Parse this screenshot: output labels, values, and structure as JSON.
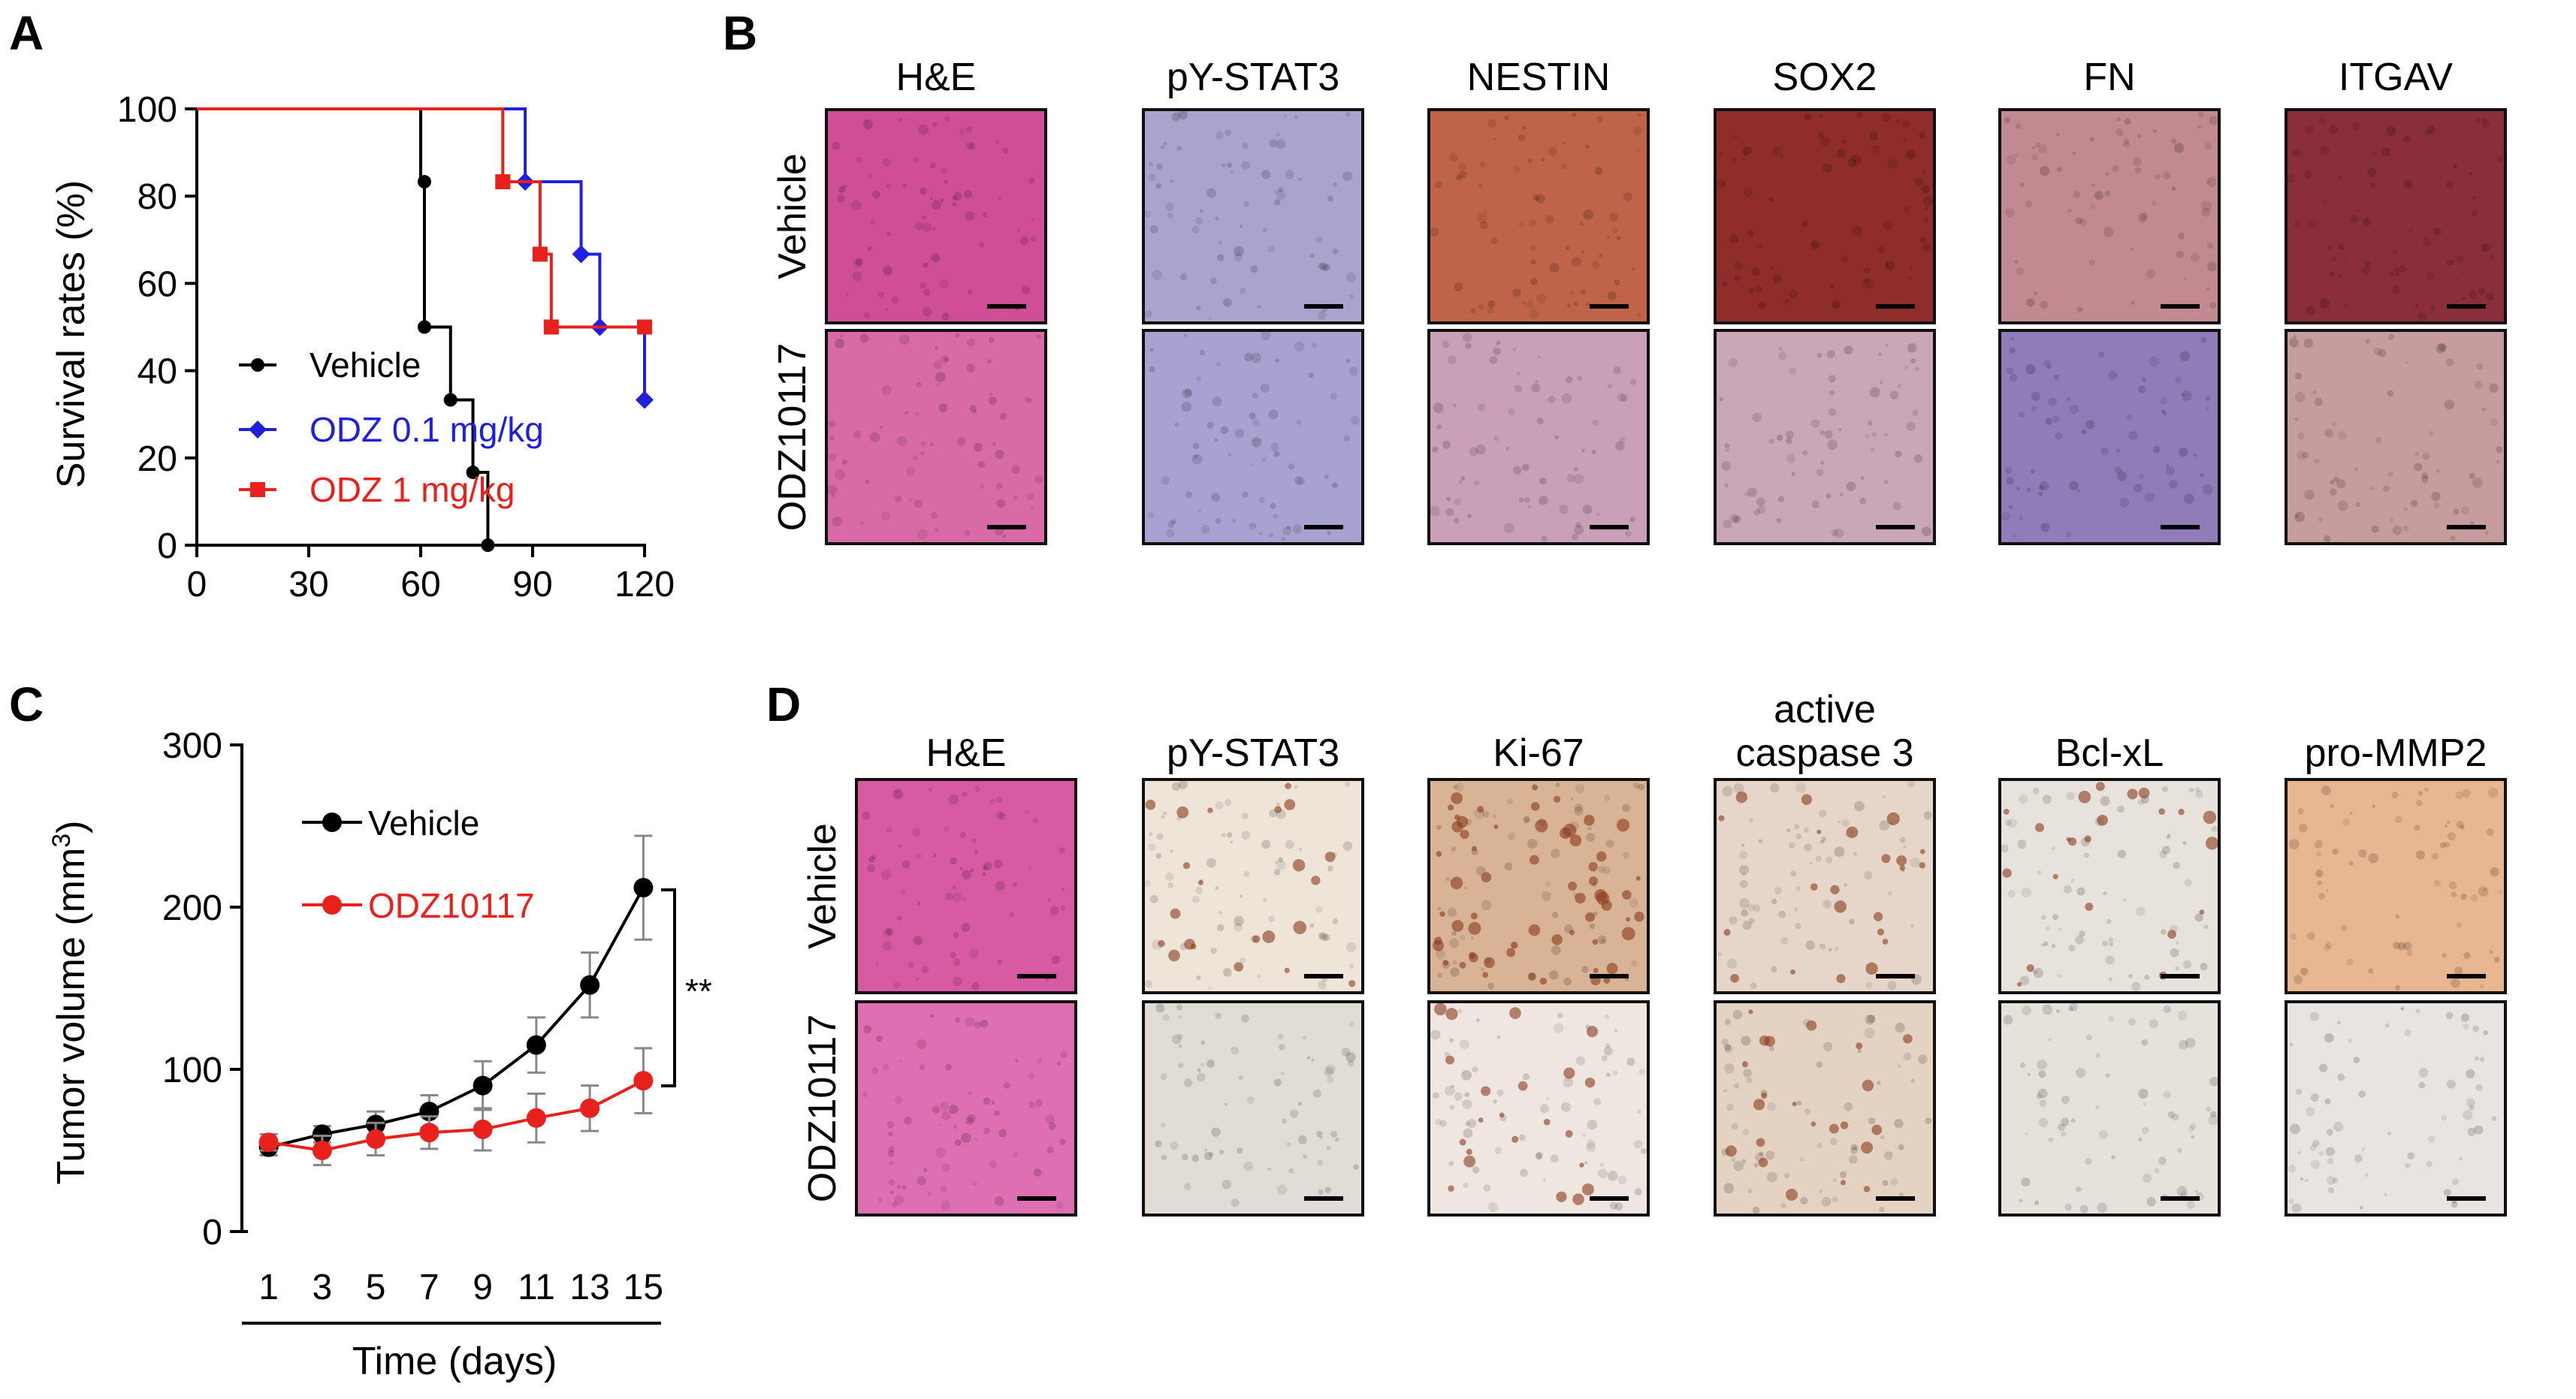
{
  "panels": {
    "A": "A",
    "B": "B",
    "C": "C",
    "D": "D"
  },
  "chart_data": [
    {
      "panel": "A",
      "type": "line",
      "step": true,
      "xlabel": "",
      "ylabel": "Survival rates (%)",
      "xlim": [
        0,
        120
      ],
      "ylim": [
        0,
        100
      ],
      "xticks": [
        0,
        30,
        60,
        90,
        120
      ],
      "yticks": [
        0,
        20,
        40,
        60,
        80,
        100
      ],
      "legend": "center-left",
      "series": [
        {
          "name": "Vehicle",
          "color": "#000000",
          "marker": "circle",
          "points": [
            [
              0,
              100
            ],
            [
              60,
              100
            ],
            [
              60,
              83.3
            ],
            [
              61,
              83.3
            ],
            [
              61,
              50
            ],
            [
              68,
              50
            ],
            [
              68,
              33.3
            ],
            [
              74,
              33.3
            ],
            [
              74,
              16.7
            ],
            [
              78,
              16.7
            ],
            [
              78,
              0
            ]
          ],
          "markers": [
            [
              61,
              83.3
            ],
            [
              61,
              50
            ],
            [
              68,
              33.3
            ],
            [
              74,
              16.7
            ],
            [
              78,
              0
            ]
          ]
        },
        {
          "name": "ODZ 0.1 mg/kg",
          "color": "#1f1fe0",
          "marker": "diamond",
          "points": [
            [
              0,
              100
            ],
            [
              88,
              100
            ],
            [
              88,
              83.3
            ],
            [
              103,
              83.3
            ],
            [
              103,
              66.7
            ],
            [
              108,
              66.7
            ],
            [
              108,
              50
            ],
            [
              120,
              50
            ],
            [
              120,
              33.3
            ]
          ],
          "markers": [
            [
              88,
              83.3
            ],
            [
              103,
              66.7
            ],
            [
              108,
              50
            ],
            [
              120,
              33.3
            ]
          ]
        },
        {
          "name": "ODZ 1 mg/kg",
          "color": "#e8211d",
          "marker": "square",
          "points": [
            [
              0,
              100
            ],
            [
              82,
              100
            ],
            [
              82,
              83.3
            ],
            [
              92,
              83.3
            ],
            [
              92,
              66.7
            ],
            [
              95,
              66.7
            ],
            [
              95,
              50
            ],
            [
              120,
              50
            ],
            [
              120,
              50
            ]
          ],
          "markers": [
            [
              82,
              83.3
            ],
            [
              92,
              66.7
            ],
            [
              95,
              50
            ],
            [
              120,
              50
            ]
          ]
        }
      ]
    },
    {
      "panel": "C",
      "type": "line",
      "xlabel": "Time (days)",
      "ylabel": "Tumor volume (mm3)",
      "ylabel_main": "Tumor volume (mm",
      "ylabel_sup": "3",
      "ylabel_close": ")",
      "xlim": [
        0,
        16
      ],
      "ylim": [
        0,
        300
      ],
      "categories": [
        "1",
        "3",
        "5",
        "7",
        "9",
        "11",
        "13",
        "15"
      ],
      "x": [
        1,
        3,
        5,
        7,
        9,
        11,
        13,
        15
      ],
      "yticks": [
        0,
        100,
        200,
        300
      ],
      "legend": "top-left",
      "annotation": "**",
      "series": [
        {
          "name": "Vehicle",
          "color": "#000000",
          "values": [
            52,
            60,
            66,
            74,
            90,
            115,
            152,
            212
          ],
          "errors": [
            5,
            5,
            8,
            10,
            15,
            17,
            20,
            32
          ]
        },
        {
          "name": "ODZ10117",
          "color": "#e8211d",
          "values": [
            55,
            50,
            57,
            61,
            63,
            70,
            76,
            93
          ],
          "errors": [
            5,
            9,
            10,
            10,
            13,
            15,
            14,
            20
          ]
        }
      ]
    }
  ],
  "panel_b": {
    "columns": [
      "H&E",
      "pY-STAT3",
      "NESTIN",
      "SOX2",
      "FN",
      "ITGAV"
    ],
    "rows": [
      "Vehicle",
      "ODZ10117"
    ],
    "tile_colors": [
      [
        "#cf4f94",
        "#a9a3cd",
        "#bf6448",
        "#8e2d2a",
        "#c28a90",
        "#8b2e3c"
      ],
      [
        "#d86aa8",
        "#a8a2d0",
        "#c9a0b6",
        "#c9a7b6",
        "#8f7cb8",
        "#c79c9c"
      ]
    ]
  },
  "panel_d": {
    "columns": [
      "H&E",
      "pY-STAT3",
      "Ki-67",
      "active caspase 3",
      "Bcl-xL",
      "pro-MMP2"
    ],
    "column_lines": [
      [
        "H&E"
      ],
      [
        "pY-STAT3"
      ],
      [
        "Ki-67"
      ],
      [
        "active",
        "caspase 3"
      ],
      [
        "Bcl-xL"
      ],
      [
        "pro-MMP2"
      ]
    ],
    "rows": [
      "Vehicle",
      "ODZ10117"
    ],
    "tile_colors": [
      [
        "#d75aa3",
        "#efe4d8",
        "#d9b396",
        "#e6d6c9",
        "#e8e2dc",
        "#e8b690"
      ],
      [
        "#df6fb3",
        "#e2dcd6",
        "#efe6e0",
        "#e4d2c2",
        "#e6e1db",
        "#e7e4e2"
      ]
    ],
    "dot_color": "#8a3a1a"
  }
}
